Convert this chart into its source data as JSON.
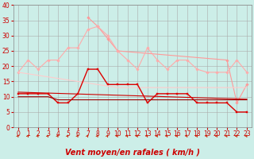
{
  "xlabel": "Vent moyen/en rafales ( km/h )",
  "background_color": "#cceee8",
  "grid_color": "#aaaaaa",
  "xlim": [
    -0.5,
    23.5
  ],
  "ylim": [
    0,
    40
  ],
  "yticks": [
    0,
    5,
    10,
    15,
    20,
    25,
    30,
    35,
    40
  ],
  "xticks": [
    0,
    1,
    2,
    3,
    4,
    5,
    6,
    7,
    8,
    9,
    10,
    11,
    12,
    13,
    14,
    15,
    16,
    17,
    18,
    19,
    20,
    21,
    22,
    23
  ],
  "series": [
    {
      "label": "rafales_pink_high",
      "color": "#ff9999",
      "linewidth": 0.8,
      "marker": "D",
      "markersize": 1.8,
      "values": [
        null,
        null,
        null,
        null,
        null,
        null,
        null,
        36,
        33,
        29,
        25,
        null,
        null,
        null,
        null,
        null,
        null,
        null,
        null,
        null,
        null,
        22,
        8,
        14
      ]
    },
    {
      "label": "rafales_pink_mid",
      "color": "#ffaaaa",
      "linewidth": 0.8,
      "marker": "D",
      "markersize": 1.8,
      "values": [
        18,
        22,
        19,
        22,
        22,
        26,
        26,
        32,
        33,
        30,
        25,
        22,
        19,
        26,
        22,
        19,
        22,
        22,
        19,
        18,
        18,
        18,
        22,
        18
      ]
    },
    {
      "label": "trend_light_pink",
      "color": "#ffcccc",
      "linewidth": 0.8,
      "marker": null,
      "markersize": 0,
      "values": [
        18,
        17.5,
        17,
        16.5,
        16,
        15.5,
        15,
        14.5,
        14,
        13.5,
        13,
        13,
        13,
        13,
        13,
        13,
        13,
        13,
        13,
        13,
        13,
        13,
        13,
        13
      ]
    },
    {
      "label": "vent_moyen_dark_trend",
      "color": "#cc0000",
      "linewidth": 0.8,
      "marker": null,
      "markersize": 0,
      "values": [
        11.5,
        11.4,
        11.3,
        11.2,
        11.1,
        11.0,
        10.9,
        10.8,
        10.7,
        10.6,
        10.5,
        10.4,
        10.3,
        10.2,
        10.1,
        10.0,
        9.9,
        9.8,
        9.7,
        9.6,
        9.5,
        9.4,
        9.3,
        9.2
      ]
    },
    {
      "label": "vent_moyen_red",
      "color": "#dd0000",
      "linewidth": 1.0,
      "marker": "s",
      "markersize": 2.0,
      "values": [
        11,
        11,
        11,
        11,
        8,
        8,
        11,
        19,
        19,
        14,
        14,
        14,
        14,
        8,
        11,
        11,
        11,
        11,
        8,
        8,
        8,
        8,
        5,
        5
      ]
    },
    {
      "label": "vent_lower_dark",
      "color": "#990000",
      "linewidth": 0.8,
      "marker": null,
      "markersize": 0,
      "values": [
        10,
        10,
        10,
        10,
        9,
        9,
        9,
        9,
        9,
        9,
        9,
        9,
        9,
        9,
        9,
        9,
        9,
        9,
        9,
        9,
        9,
        9,
        9,
        9
      ]
    }
  ],
  "arrow_color": "#cc2200",
  "xlabel_color": "#cc0000",
  "xlabel_fontsize": 7,
  "tick_fontsize": 5.5,
  "ylabel_fontsize": 5.5
}
